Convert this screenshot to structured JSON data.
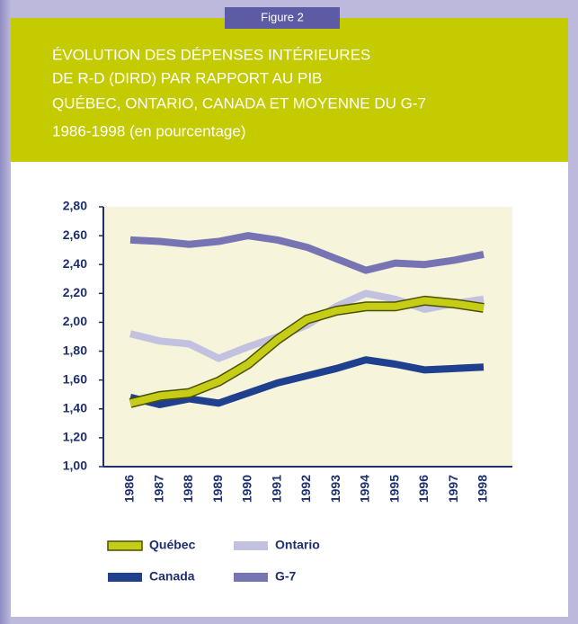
{
  "chart_data": {
    "type": "line",
    "figure_label": "Figure 2",
    "title": [
      "ÉVOLUTION DES DÉPENSES INTÉRIEURES",
      "DE R-D (DIRD) PAR RAPPORT AU PIB",
      "QUÉBEC, ONTARIO, CANADA ET MOYENNE DU G-7",
      "1986-1998 (en pourcentage)"
    ],
    "categories": [
      "1986",
      "1987",
      "1988",
      "1989",
      "1990",
      "1991",
      "1992",
      "1993",
      "1994",
      "1995",
      "1996",
      "1997",
      "1998"
    ],
    "series": [
      {
        "name": "Québec",
        "color": "#c6cd16",
        "values": [
          1.44,
          1.49,
          1.51,
          1.59,
          1.71,
          1.88,
          2.02,
          2.08,
          2.11,
          2.11,
          2.15,
          2.13,
          2.1
        ]
      },
      {
        "name": "Ontario",
        "color": "#c3c1e0",
        "values": [
          1.92,
          1.87,
          1.85,
          1.75,
          1.83,
          1.9,
          1.98,
          2.11,
          2.2,
          2.16,
          2.09,
          2.13,
          2.16
        ]
      },
      {
        "name": "Canada",
        "color": "#1f3f8f",
        "values": [
          1.48,
          1.43,
          1.47,
          1.44,
          1.51,
          1.58,
          1.63,
          1.68,
          1.74,
          1.71,
          1.67,
          1.68,
          1.69
        ]
      },
      {
        "name": "G-7",
        "color": "#7674b2",
        "values": [
          2.57,
          2.56,
          2.54,
          2.56,
          2.6,
          2.57,
          2.52,
          2.44,
          2.36,
          2.41,
          2.4,
          2.43,
          2.47
        ]
      }
    ],
    "ylim": [
      1.0,
      2.8
    ],
    "yticks": [
      {
        "value": 1.0,
        "label": "1,00"
      },
      {
        "value": 1.2,
        "label": "1,20"
      },
      {
        "value": 1.4,
        "label": "1,40"
      },
      {
        "value": 1.6,
        "label": "1,60"
      },
      {
        "value": 1.8,
        "label": "1,80"
      },
      {
        "value": 2.0,
        "label": "2,00"
      },
      {
        "value": 2.2,
        "label": "2,20"
      },
      {
        "value": 2.4,
        "label": "2,40"
      },
      {
        "value": 2.6,
        "label": "2,60"
      },
      {
        "value": 2.8,
        "label": "2,80"
      }
    ],
    "grid": false
  }
}
